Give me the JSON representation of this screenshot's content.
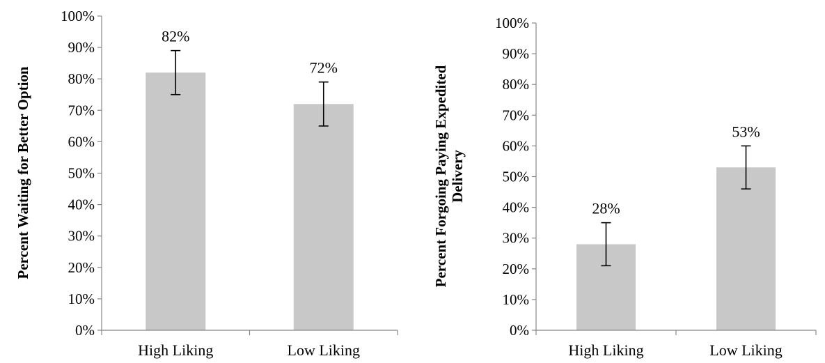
{
  "chart_data": [
    {
      "type": "bar",
      "categories": [
        "High Liking",
        "Low Liking"
      ],
      "values": [
        82,
        72
      ],
      "data_labels": [
        "82%",
        "72%"
      ],
      "error_bars": [
        [
          75,
          89
        ],
        [
          65,
          79
        ]
      ],
      "ylabel": "Percent Waiting for Better Option",
      "ylim": [
        0,
        100
      ],
      "yticks": [
        "0%",
        "10%",
        "20%",
        "30%",
        "40%",
        "50%",
        "60%",
        "70%",
        "80%",
        "90%",
        "100%"
      ],
      "bar_color": "#c8c8c8",
      "grid": false,
      "legend": "none"
    },
    {
      "type": "bar",
      "categories": [
        "High Liking",
        "Low Liking"
      ],
      "values": [
        28,
        53
      ],
      "data_labels": [
        "28%",
        "53%"
      ],
      "error_bars": [
        [
          21,
          35
        ],
        [
          46,
          60
        ]
      ],
      "ylabel_lines": [
        "Percent Forgoing Paying Expedited",
        "Delivery"
      ],
      "ylim": [
        0,
        100
      ],
      "yticks": [
        "0%",
        "10%",
        "20%",
        "30%",
        "40%",
        "50%",
        "60%",
        "70%",
        "80%",
        "90%",
        "100%"
      ],
      "bar_color": "#c8c8c8",
      "grid": false,
      "legend": "none"
    }
  ]
}
